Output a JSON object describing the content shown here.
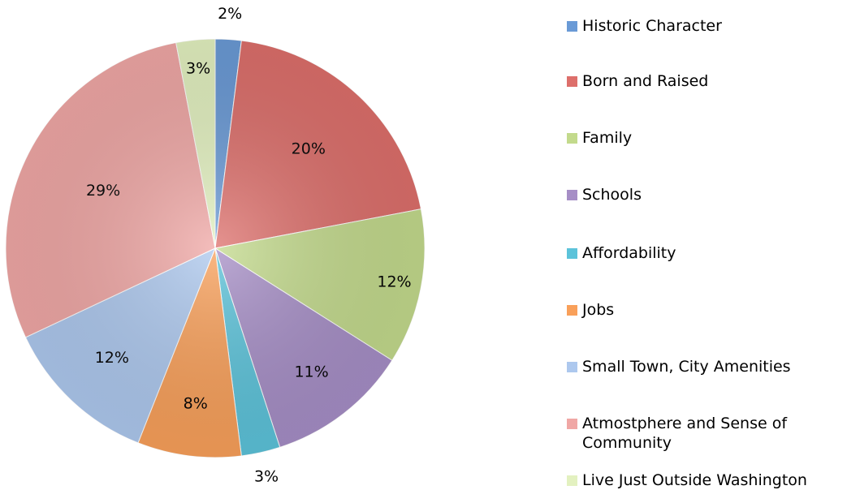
{
  "chart_data": {
    "type": "pie",
    "categories": [
      "Historic Character",
      "Born and Raised",
      "Family",
      "Schools",
      "Affordability",
      "Jobs",
      "Small Town, City Amenities",
      "Atmostphere and Sense of Community",
      "Live Just Outside Washington"
    ],
    "values": [
      2,
      20,
      12,
      11,
      3,
      8,
      12,
      29,
      3
    ],
    "value_labels": [
      "2%",
      "20%",
      "12%",
      "11%",
      "3%",
      "8%",
      "12%",
      "29%",
      "3%"
    ],
    "colors": [
      "#6a9ad6",
      "#dd6f6b",
      "#c3da8c",
      "#a68ec6",
      "#5cc3da",
      "#f9a05a",
      "#adc8ee",
      "#f0a7a5",
      "#e3f1c0"
    ],
    "legend": "right"
  }
}
